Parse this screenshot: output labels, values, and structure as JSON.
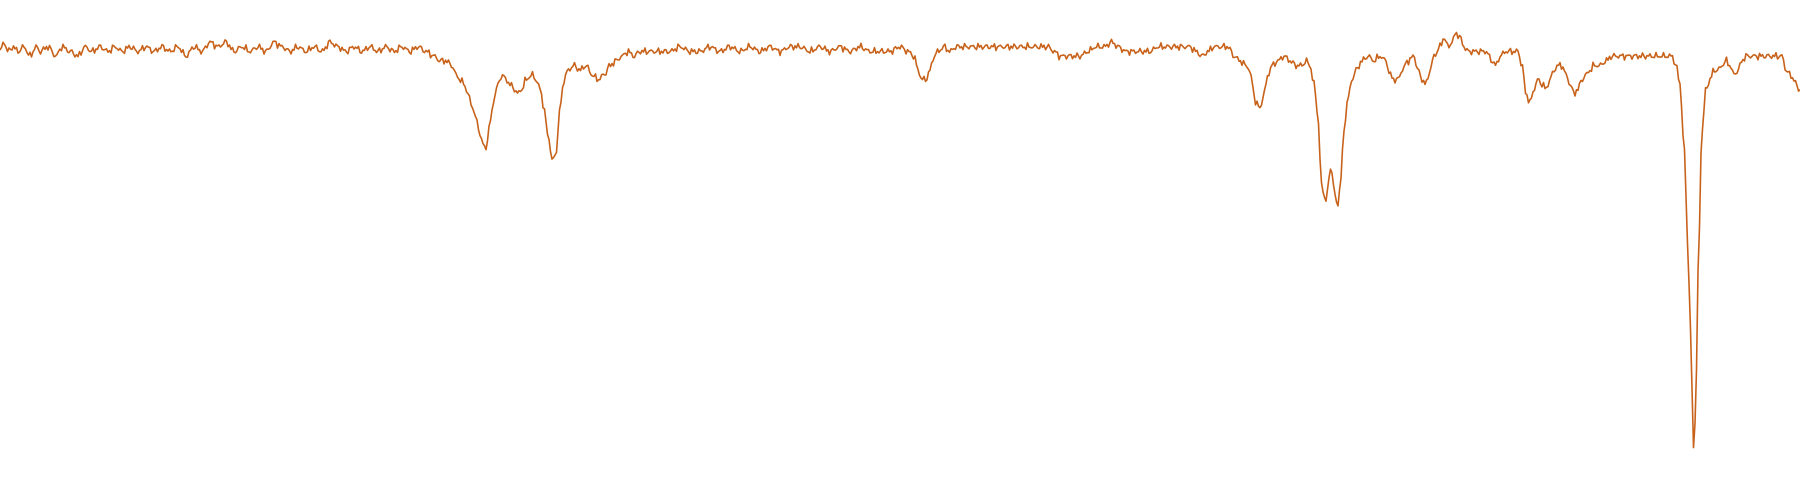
{
  "chart_data": {
    "type": "line",
    "title": "",
    "xlabel": "",
    "ylabel": "",
    "grid": false,
    "axes_visible": false,
    "legend": "none",
    "xlim": [
      0,
      1800
    ],
    "ylim": [
      0,
      1
    ],
    "colors": {
      "line": "#c8621a",
      "background": "#ffffff"
    },
    "series": [
      {
        "keypoints": [
          [
            0,
            0.92
          ],
          [
            4,
            0.94
          ],
          [
            8,
            0.92
          ],
          [
            13,
            0.93
          ],
          [
            18,
            0.92
          ],
          [
            24,
            0.93
          ],
          [
            30,
            0.91
          ],
          [
            36,
            0.93
          ],
          [
            40,
            0.92
          ],
          [
            48,
            0.93
          ],
          [
            56,
            0.91
          ],
          [
            62,
            0.93
          ],
          [
            70,
            0.92
          ],
          [
            78,
            0.91
          ],
          [
            85,
            0.93
          ],
          [
            92,
            0.92
          ],
          [
            100,
            0.93
          ],
          [
            108,
            0.92
          ],
          [
            115,
            0.93
          ],
          [
            122,
            0.92
          ],
          [
            130,
            0.93
          ],
          [
            138,
            0.92
          ],
          [
            146,
            0.93
          ],
          [
            154,
            0.92
          ],
          [
            162,
            0.93
          ],
          [
            170,
            0.92
          ],
          [
            178,
            0.93
          ],
          [
            186,
            0.91
          ],
          [
            194,
            0.93
          ],
          [
            202,
            0.92
          ],
          [
            210,
            0.94
          ],
          [
            218,
            0.93
          ],
          [
            226,
            0.94
          ],
          [
            234,
            0.92
          ],
          [
            242,
            0.93
          ],
          [
            250,
            0.92
          ],
          [
            258,
            0.93
          ],
          [
            266,
            0.92
          ],
          [
            274,
            0.94
          ],
          [
            282,
            0.93
          ],
          [
            290,
            0.92
          ],
          [
            298,
            0.93
          ],
          [
            306,
            0.92
          ],
          [
            314,
            0.93
          ],
          [
            322,
            0.92
          ],
          [
            330,
            0.94
          ],
          [
            338,
            0.93
          ],
          [
            346,
            0.92
          ],
          [
            354,
            0.93
          ],
          [
            362,
            0.92
          ],
          [
            370,
            0.93
          ],
          [
            378,
            0.92
          ],
          [
            386,
            0.93
          ],
          [
            394,
            0.92
          ],
          [
            402,
            0.93
          ],
          [
            410,
            0.92
          ],
          [
            418,
            0.93
          ],
          [
            426,
            0.92
          ],
          [
            434,
            0.91
          ],
          [
            440,
            0.9
          ],
          [
            446,
            0.9
          ],
          [
            452,
            0.89
          ],
          [
            456,
            0.87
          ],
          [
            460,
            0.86
          ],
          [
            464,
            0.85
          ],
          [
            468,
            0.83
          ],
          [
            472,
            0.8
          ],
          [
            476,
            0.78
          ],
          [
            480,
            0.74
          ],
          [
            484,
            0.72
          ],
          [
            486,
            0.71
          ],
          [
            490,
            0.77
          ],
          [
            494,
            0.82
          ],
          [
            498,
            0.85
          ],
          [
            502,
            0.87
          ],
          [
            506,
            0.86
          ],
          [
            510,
            0.85
          ],
          [
            514,
            0.84
          ],
          [
            518,
            0.83
          ],
          [
            522,
            0.84
          ],
          [
            526,
            0.86
          ],
          [
            532,
            0.87
          ],
          [
            536,
            0.86
          ],
          [
            540,
            0.84
          ],
          [
            544,
            0.8
          ],
          [
            548,
            0.74
          ],
          [
            552,
            0.69
          ],
          [
            556,
            0.7
          ],
          [
            560,
            0.8
          ],
          [
            564,
            0.86
          ],
          [
            568,
            0.88
          ],
          [
            574,
            0.89
          ],
          [
            580,
            0.88
          ],
          [
            586,
            0.89
          ],
          [
            592,
            0.87
          ],
          [
            598,
            0.86
          ],
          [
            604,
            0.87
          ],
          [
            610,
            0.89
          ],
          [
            616,
            0.9
          ],
          [
            622,
            0.91
          ],
          [
            628,
            0.92
          ],
          [
            634,
            0.91
          ],
          [
            640,
            0.92
          ],
          [
            650,
            0.92
          ],
          [
            660,
            0.92
          ],
          [
            670,
            0.92
          ],
          [
            680,
            0.93
          ],
          [
            690,
            0.92
          ],
          [
            700,
            0.92
          ],
          [
            710,
            0.93
          ],
          [
            720,
            0.92
          ],
          [
            730,
            0.93
          ],
          [
            740,
            0.92
          ],
          [
            750,
            0.93
          ],
          [
            760,
            0.92
          ],
          [
            770,
            0.93
          ],
          [
            780,
            0.92
          ],
          [
            790,
            0.93
          ],
          [
            800,
            0.93
          ],
          [
            810,
            0.92
          ],
          [
            820,
            0.93
          ],
          [
            830,
            0.92
          ],
          [
            840,
            0.93
          ],
          [
            850,
            0.92
          ],
          [
            860,
            0.93
          ],
          [
            870,
            0.92
          ],
          [
            880,
            0.92
          ],
          [
            890,
            0.92
          ],
          [
            900,
            0.93
          ],
          [
            908,
            0.92
          ],
          [
            914,
            0.91
          ],
          [
            918,
            0.88
          ],
          [
            922,
            0.86
          ],
          [
            926,
            0.86
          ],
          [
            930,
            0.88
          ],
          [
            934,
            0.91
          ],
          [
            938,
            0.92
          ],
          [
            944,
            0.93
          ],
          [
            950,
            0.92
          ],
          [
            956,
            0.93
          ],
          [
            962,
            0.93
          ],
          [
            970,
            0.93
          ],
          [
            980,
            0.93
          ],
          [
            990,
            0.93
          ],
          [
            1000,
            0.93
          ],
          [
            1010,
            0.93
          ],
          [
            1020,
            0.93
          ],
          [
            1030,
            0.93
          ],
          [
            1040,
            0.93
          ],
          [
            1048,
            0.93
          ],
          [
            1054,
            0.92
          ],
          [
            1060,
            0.91
          ],
          [
            1066,
            0.91
          ],
          [
            1072,
            0.91
          ],
          [
            1080,
            0.91
          ],
          [
            1088,
            0.92
          ],
          [
            1096,
            0.93
          ],
          [
            1104,
            0.93
          ],
          [
            1112,
            0.94
          ],
          [
            1118,
            0.93
          ],
          [
            1126,
            0.92
          ],
          [
            1134,
            0.92
          ],
          [
            1142,
            0.92
          ],
          [
            1150,
            0.92
          ],
          [
            1158,
            0.93
          ],
          [
            1166,
            0.93
          ],
          [
            1174,
            0.93
          ],
          [
            1182,
            0.93
          ],
          [
            1190,
            0.93
          ],
          [
            1196,
            0.92
          ],
          [
            1202,
            0.91
          ],
          [
            1208,
            0.92
          ],
          [
            1214,
            0.93
          ],
          [
            1220,
            0.93
          ],
          [
            1228,
            0.93
          ],
          [
            1234,
            0.91
          ],
          [
            1240,
            0.9
          ],
          [
            1246,
            0.89
          ],
          [
            1250,
            0.88
          ],
          [
            1252,
            0.85
          ],
          [
            1256,
            0.81
          ],
          [
            1260,
            0.8
          ],
          [
            1264,
            0.83
          ],
          [
            1268,
            0.87
          ],
          [
            1272,
            0.89
          ],
          [
            1278,
            0.9
          ],
          [
            1284,
            0.91
          ],
          [
            1290,
            0.9
          ],
          [
            1296,
            0.89
          ],
          [
            1302,
            0.89
          ],
          [
            1306,
            0.9
          ],
          [
            1310,
            0.89
          ],
          [
            1314,
            0.85
          ],
          [
            1318,
            0.78
          ],
          [
            1320,
            0.69
          ],
          [
            1322,
            0.63
          ],
          [
            1324,
            0.61
          ],
          [
            1326,
            0.6
          ],
          [
            1328,
            0.63
          ],
          [
            1330,
            0.67
          ],
          [
            1332,
            0.66
          ],
          [
            1334,
            0.63
          ],
          [
            1336,
            0.6
          ],
          [
            1338,
            0.59
          ],
          [
            1340,
            0.63
          ],
          [
            1344,
            0.75
          ],
          [
            1348,
            0.82
          ],
          [
            1352,
            0.86
          ],
          [
            1356,
            0.88
          ],
          [
            1362,
            0.9
          ],
          [
            1368,
            0.91
          ],
          [
            1374,
            0.9
          ],
          [
            1380,
            0.91
          ],
          [
            1386,
            0.9
          ],
          [
            1390,
            0.87
          ],
          [
            1394,
            0.86
          ],
          [
            1398,
            0.86
          ],
          [
            1402,
            0.88
          ],
          [
            1408,
            0.9
          ],
          [
            1414,
            0.91
          ],
          [
            1418,
            0.88
          ],
          [
            1422,
            0.86
          ],
          [
            1426,
            0.85
          ],
          [
            1430,
            0.88
          ],
          [
            1434,
            0.91
          ],
          [
            1440,
            0.93
          ],
          [
            1444,
            0.95
          ],
          [
            1448,
            0.93
          ],
          [
            1452,
            0.94
          ],
          [
            1456,
            0.96
          ],
          [
            1460,
            0.95
          ],
          [
            1464,
            0.93
          ],
          [
            1468,
            0.92
          ],
          [
            1474,
            0.92
          ],
          [
            1480,
            0.92
          ],
          [
            1486,
            0.92
          ],
          [
            1492,
            0.9
          ],
          [
            1496,
            0.89
          ],
          [
            1500,
            0.91
          ],
          [
            1506,
            0.92
          ],
          [
            1512,
            0.92
          ],
          [
            1518,
            0.92
          ],
          [
            1522,
            0.89
          ],
          [
            1526,
            0.83
          ],
          [
            1530,
            0.81
          ],
          [
            1534,
            0.84
          ],
          [
            1538,
            0.86
          ],
          [
            1542,
            0.85
          ],
          [
            1546,
            0.84
          ],
          [
            1550,
            0.86
          ],
          [
            1554,
            0.88
          ],
          [
            1558,
            0.89
          ],
          [
            1562,
            0.89
          ],
          [
            1566,
            0.87
          ],
          [
            1570,
            0.85
          ],
          [
            1574,
            0.83
          ],
          [
            1578,
            0.84
          ],
          [
            1582,
            0.86
          ],
          [
            1586,
            0.87
          ],
          [
            1590,
            0.88
          ],
          [
            1594,
            0.89
          ],
          [
            1600,
            0.89
          ],
          [
            1606,
            0.9
          ],
          [
            1612,
            0.91
          ],
          [
            1618,
            0.91
          ],
          [
            1624,
            0.91
          ],
          [
            1630,
            0.91
          ],
          [
            1636,
            0.91
          ],
          [
            1642,
            0.91
          ],
          [
            1648,
            0.91
          ],
          [
            1654,
            0.91
          ],
          [
            1660,
            0.91
          ],
          [
            1666,
            0.91
          ],
          [
            1672,
            0.91
          ],
          [
            1676,
            0.89
          ],
          [
            1680,
            0.85
          ],
          [
            1684,
            0.72
          ],
          [
            1688,
            0.5
          ],
          [
            1690,
            0.35
          ],
          [
            1692,
            0.2
          ],
          [
            1694,
            0.05
          ],
          [
            1696,
            0.2
          ],
          [
            1698,
            0.45
          ],
          [
            1702,
            0.75
          ],
          [
            1706,
            0.84
          ],
          [
            1710,
            0.86
          ],
          [
            1714,
            0.88
          ],
          [
            1718,
            0.88
          ],
          [
            1722,
            0.89
          ],
          [
            1726,
            0.9
          ],
          [
            1730,
            0.89
          ],
          [
            1734,
            0.87
          ],
          [
            1738,
            0.88
          ],
          [
            1742,
            0.9
          ],
          [
            1746,
            0.91
          ],
          [
            1752,
            0.91
          ],
          [
            1758,
            0.91
          ],
          [
            1764,
            0.91
          ],
          [
            1770,
            0.91
          ],
          [
            1776,
            0.91
          ],
          [
            1782,
            0.91
          ],
          [
            1786,
            0.88
          ],
          [
            1790,
            0.87
          ],
          [
            1794,
            0.86
          ],
          [
            1798,
            0.84
          ],
          [
            1800,
            0.84
          ]
        ]
      }
    ]
  }
}
